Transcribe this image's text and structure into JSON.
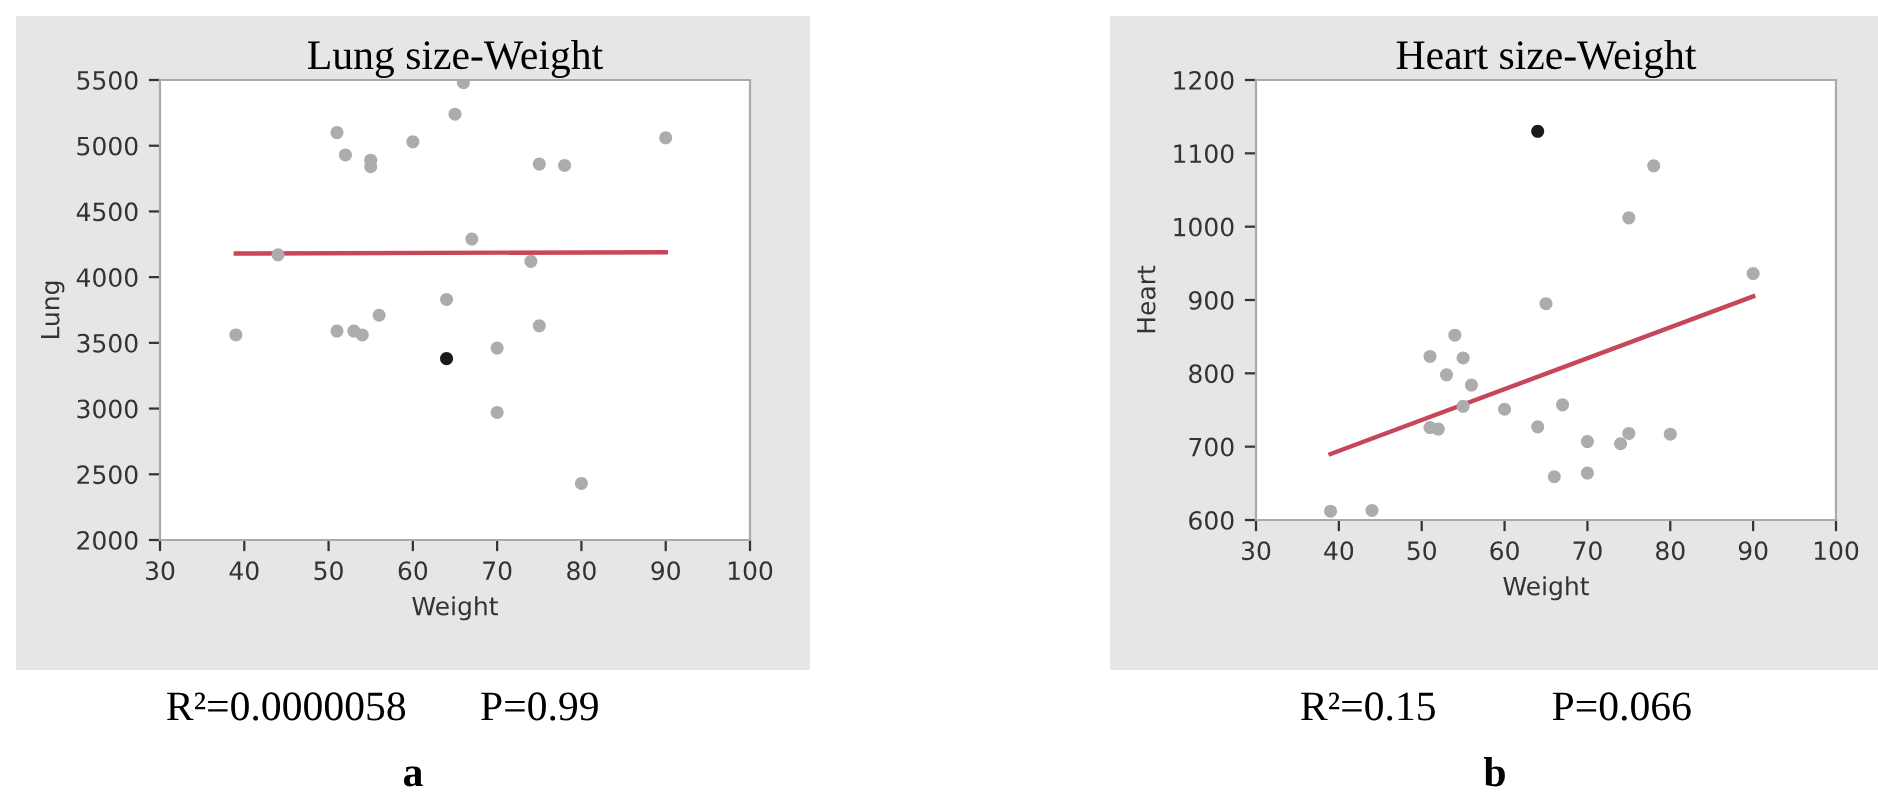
{
  "chart_data": [
    {
      "type": "scatter",
      "title": "Lung size-Weight",
      "xlabel": "Weight",
      "ylabel": "Lung",
      "xlim": [
        30,
        100
      ],
      "ylim": [
        2000,
        5500
      ],
      "xticks": [
        30,
        40,
        50,
        60,
        70,
        80,
        90,
        100
      ],
      "yticks": [
        2000,
        2500,
        3000,
        3500,
        4000,
        4500,
        5000,
        5500
      ],
      "grid": false,
      "legend": false,
      "marker": "circle",
      "series": [
        {
          "color": "#acacac",
          "x": [
            39,
            44,
            51,
            52,
            55,
            55,
            60,
            65,
            66,
            67,
            75,
            78,
            90,
            74,
            64,
            56,
            51,
            53,
            54,
            75,
            70,
            70,
            80
          ],
          "values": [
            3560,
            4170,
            5100,
            4930,
            4890,
            4840,
            5030,
            5240,
            5480,
            4290,
            4860,
            4850,
            5060,
            4120,
            3830,
            3710,
            3590,
            3590,
            3560,
            3630,
            3460,
            2970,
            2430
          ]
        },
        {
          "color": "#1a1a1a",
          "x": [
            64
          ],
          "values": [
            3380
          ]
        },
        {
          "type": "line",
          "marker": "none",
          "color": "#c8465a",
          "x": [
            39,
            90
          ],
          "values": [
            4180,
            4190
          ]
        }
      ],
      "annotations": [
        "R²=0.0000058",
        "P=0.99",
        "a"
      ]
    },
    {
      "type": "scatter",
      "title": "Heart size-Weight",
      "xlabel": "Weight",
      "ylabel": "Heart",
      "xlim": [
        30,
        100
      ],
      "ylim": [
        600,
        1200
      ],
      "xticks": [
        30,
        40,
        50,
        60,
        70,
        80,
        90,
        100
      ],
      "yticks": [
        600,
        700,
        800,
        900,
        1000,
        1100,
        1200
      ],
      "grid": false,
      "legend": false,
      "marker": "circle",
      "series": [
        {
          "color": "#acacac",
          "x": [
            39,
            44,
            51,
            51,
            52,
            53,
            54,
            55,
            55,
            56,
            60,
            64,
            65,
            66,
            67,
            70,
            70,
            74,
            75,
            75,
            78,
            80,
            90
          ],
          "values": [
            612,
            613,
            823,
            726,
            724,
            798,
            852,
            821,
            755,
            784,
            751,
            727,
            895,
            659,
            757,
            707,
            664,
            704,
            718,
            1012,
            1083,
            717,
            936
          ]
        },
        {
          "color": "#1a1a1a",
          "x": [
            64
          ],
          "values": [
            1130
          ]
        },
        {
          "type": "line",
          "marker": "none",
          "color": "#c8465a",
          "x": [
            39,
            90
          ],
          "values": [
            690,
            905
          ]
        }
      ],
      "annotations": [
        "R²=0.15",
        "P=0.066",
        "b"
      ]
    }
  ]
}
